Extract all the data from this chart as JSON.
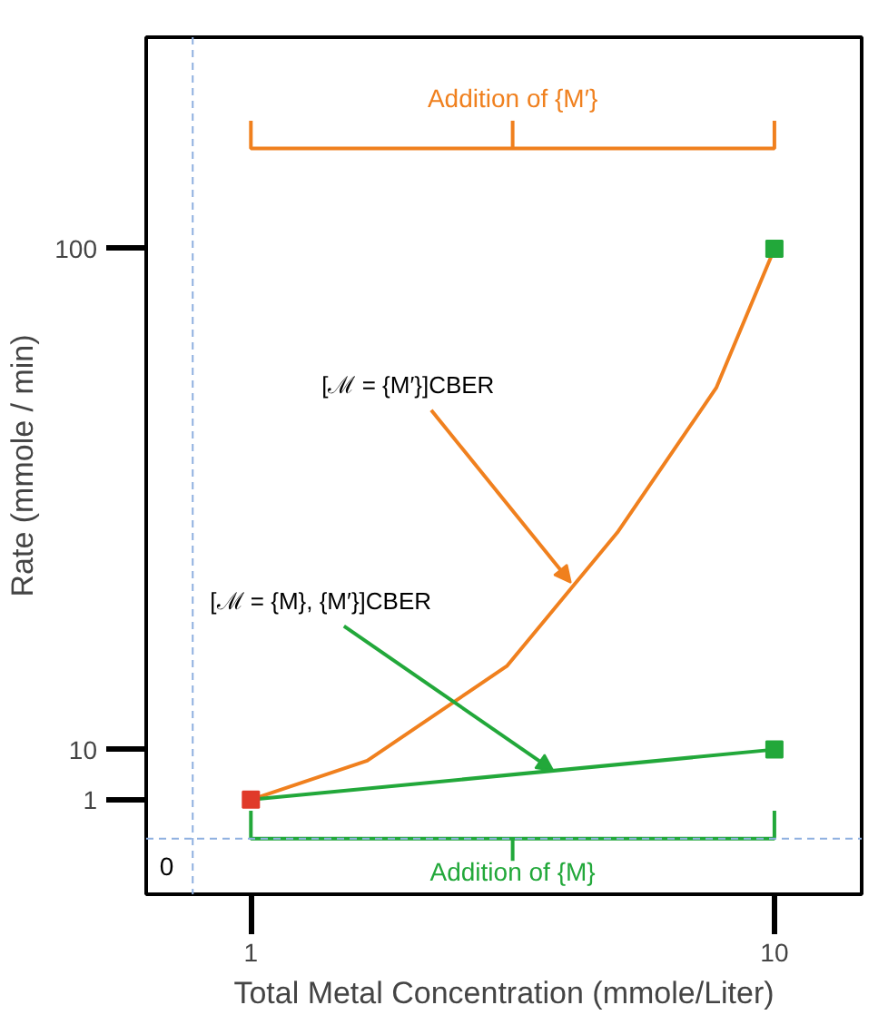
{
  "chart_data": {
    "type": "line",
    "xlabel": "Total Metal Concentration (mmole/Liter)",
    "ylabel": "Rate (mmole / min)",
    "xlim": [
      -0.8,
      11.5
    ],
    "ylim": [
      -16,
      138
    ],
    "xticks": [
      1,
      10
    ],
    "yticks": [
      1,
      10,
      100
    ],
    "grid": false,
    "series": [
      {
        "color": "#f0801e",
        "x": [
          1,
          3,
          5.4,
          7.3,
          9,
          10
        ],
        "values": [
          1,
          8,
          25,
          49,
          75,
          100
        ],
        "marker": "none"
      },
      {
        "color": "#22a83a",
        "x": [
          1,
          10
        ],
        "values": [
          1,
          10
        ],
        "marker": "none"
      },
      {
        "type": "scatter",
        "x": [
          1,
          10,
          10
        ],
        "values": [
          1,
          10,
          100
        ],
        "colors": [
          "#e03a2a",
          "#22a83a",
          "#22a83a"
        ],
        "marker": "square"
      }
    ],
    "ref_lines": [
      {
        "axis": "x",
        "value": 0,
        "color": "#8fb0e0",
        "line_style": "dashed"
      },
      {
        "axis": "y",
        "value": -6,
        "color": "#8fb0e0",
        "line_style": "dashed"
      }
    ],
    "annotations": [
      "Addition of {M′}",
      "Addition of {M}",
      "0",
      {
        "text": "[ℳ = {M′}]CBER",
        "x": 6.5,
        "y": 40
      },
      {
        "text": "[ℳ = {M}, {M′}]CBER",
        "x": 6.2,
        "y": 6.2
      }
    ]
  }
}
